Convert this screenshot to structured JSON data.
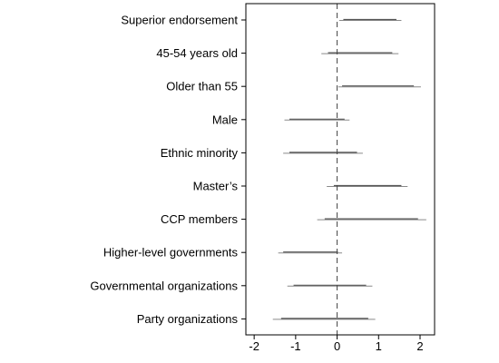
{
  "chart_data": {
    "type": "coefficient-interval",
    "orientation": "horizontal",
    "categories": [
      "Superior endorsement",
      "45-54 years old",
      "Older than 55",
      "Male",
      "Ethnic minority",
      "Master’s",
      "CCP members",
      "Higher-level governments",
      "Governmental organizations",
      "Party organizations"
    ],
    "intervals": [
      {
        "outer": [
          0.05,
          1.55
        ],
        "inner": [
          0.15,
          1.43
        ]
      },
      {
        "outer": [
          -0.38,
          1.48
        ],
        "inner": [
          -0.22,
          1.33
        ]
      },
      {
        "outer": [
          0.03,
          2.02
        ],
        "inner": [
          0.12,
          1.85
        ]
      },
      {
        "outer": [
          -1.27,
          0.3
        ],
        "inner": [
          -1.15,
          0.18
        ]
      },
      {
        "outer": [
          -1.3,
          0.62
        ],
        "inner": [
          -1.15,
          0.48
        ]
      },
      {
        "outer": [
          -0.25,
          1.7
        ],
        "inner": [
          -0.08,
          1.55
        ]
      },
      {
        "outer": [
          -0.48,
          2.15
        ],
        "inner": [
          -0.3,
          1.95
        ]
      },
      {
        "outer": [
          -1.42,
          0.12
        ],
        "inner": [
          -1.3,
          0.02
        ]
      },
      {
        "outer": [
          -1.2,
          0.85
        ],
        "inner": [
          -1.05,
          0.7
        ]
      },
      {
        "outer": [
          -1.55,
          0.92
        ],
        "inner": [
          -1.35,
          0.75
        ]
      }
    ],
    "reference_line": 0,
    "xlim": [
      -2.2,
      2.35
    ],
    "x_ticks": [
      -2,
      -1,
      0,
      1,
      2
    ],
    "x_tick_labels": [
      "-2",
      "-1",
      "0",
      "1",
      "2"
    ],
    "title": "",
    "xlabel": "",
    "ylabel": "",
    "grid": false,
    "colors": {
      "line": "#555555",
      "axis": "#000000",
      "reference": "#444444"
    }
  }
}
